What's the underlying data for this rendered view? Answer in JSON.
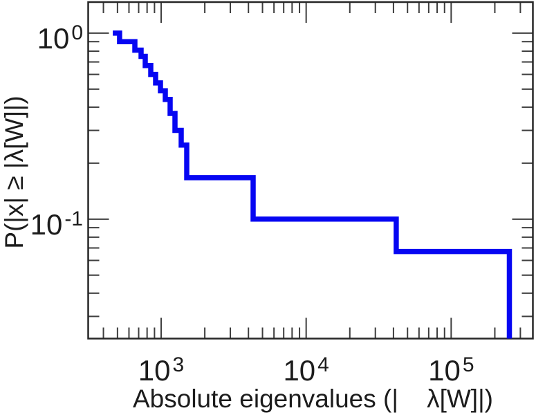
{
  "chart_data": {
    "type": "line",
    "subtype": "empirical-ccdf-staircase",
    "title": "",
    "xlabel": "Absolute eigenvalues (|    λ[W]|)",
    "ylabel": "P(|x| ≥ |λ[W]|)",
    "xscale": "log",
    "yscale": "log",
    "xlim": [
      314,
      366000
    ],
    "ylim": [
      0.0228,
      1.469
    ],
    "grid": false,
    "frame_color": "#262626",
    "tick_color": "#3d3d3d",
    "text_color": "#1c1c1c",
    "x_ticks_major": [
      {
        "value": 1000,
        "base": "10",
        "exp": "3"
      },
      {
        "value": 10000,
        "base": "10",
        "exp": "4"
      },
      {
        "value": 100000,
        "base": "10",
        "exp": "5"
      }
    ],
    "x_ticks_minor": [
      400,
      500,
      600,
      700,
      800,
      900,
      2000,
      3000,
      4000,
      5000,
      6000,
      7000,
      8000,
      9000,
      20000,
      30000,
      40000,
      50000,
      60000,
      70000,
      80000,
      90000,
      200000,
      300000
    ],
    "y_ticks_major": [
      {
        "value": 1,
        "base": "10",
        "exp": "0"
      },
      {
        "value": 0.1,
        "base": "10",
        "exp": "-1"
      }
    ],
    "y_ticks_minor": [
      0.9,
      0.8,
      0.7,
      0.6,
      0.5,
      0.4,
      0.3,
      0.2,
      0.09,
      0.08,
      0.07,
      0.06,
      0.05,
      0.04,
      0.03
    ],
    "series": [
      {
        "name": "absolute-eigenvalue-ccdf",
        "color": "#0606f2",
        "line_width": 7.5,
        "note": "Step function: each level p extends rightward from its x until the next point; after the last point the curve drops to 0 (clipped at the axis bottom).",
        "points": [
          {
            "x": 464,
            "p": 1.0
          },
          {
            "x": 517,
            "p": 0.9
          },
          {
            "x": 659,
            "p": 0.81
          },
          {
            "x": 727,
            "p": 0.75
          },
          {
            "x": 777,
            "p": 0.67
          },
          {
            "x": 848,
            "p": 0.6
          },
          {
            "x": 916,
            "p": 0.54
          },
          {
            "x": 989,
            "p": 0.49
          },
          {
            "x": 1068,
            "p": 0.44
          },
          {
            "x": 1154,
            "p": 0.37
          },
          {
            "x": 1246,
            "p": 0.3
          },
          {
            "x": 1375,
            "p": 0.25
          },
          {
            "x": 1502,
            "p": 0.167
          },
          {
            "x": 4310,
            "p": 0.1
          },
          {
            "x": 41800,
            "p": 0.067
          },
          {
            "x": 252000,
            "p": 0
          }
        ]
      }
    ]
  }
}
